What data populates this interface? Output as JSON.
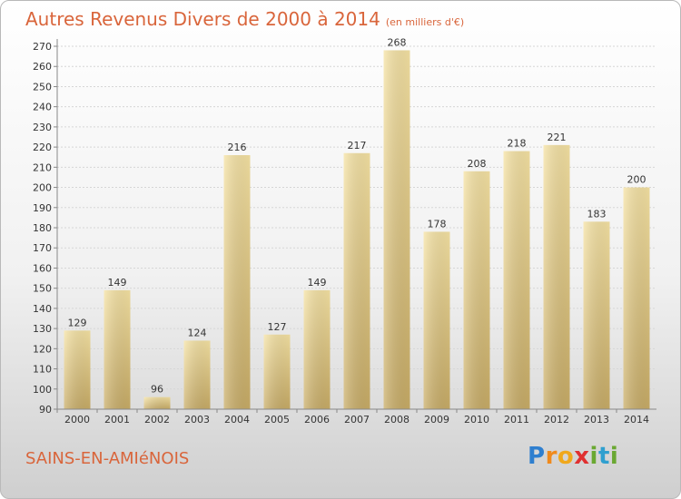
{
  "title": "Autres Revenus Divers de 2000 à 2014",
  "unit_note": "(en milliers d'€)",
  "place": "SAINS-EN-AMIéNOIS",
  "logo": {
    "letters": [
      "P",
      "r",
      "o",
      "x",
      "i",
      "t",
      "i"
    ],
    "colors": [
      "#2f7fcf",
      "#f08a1c",
      "#f0a81c",
      "#e03030",
      "#6aa832",
      "#2f9fcf",
      "#6aa832"
    ]
  },
  "colors": {
    "title": "#d9653b",
    "bar_light": "#f6e3a4",
    "bar_dark": "#c9ad67"
  },
  "chart_data": {
    "type": "bar",
    "categories": [
      "2000",
      "2001",
      "2002",
      "2003",
      "2004",
      "2005",
      "2006",
      "2007",
      "2008",
      "2009",
      "2010",
      "2011",
      "2012",
      "2013",
      "2014"
    ],
    "values": [
      129,
      149,
      96,
      124,
      216,
      127,
      149,
      217,
      268,
      178,
      208,
      218,
      221,
      183,
      200
    ],
    "ylim": [
      90,
      270
    ],
    "yticks": [
      90,
      100,
      110,
      120,
      130,
      140,
      150,
      160,
      170,
      180,
      190,
      200,
      210,
      220,
      230,
      240,
      250,
      260,
      270
    ],
    "grid": true
  }
}
